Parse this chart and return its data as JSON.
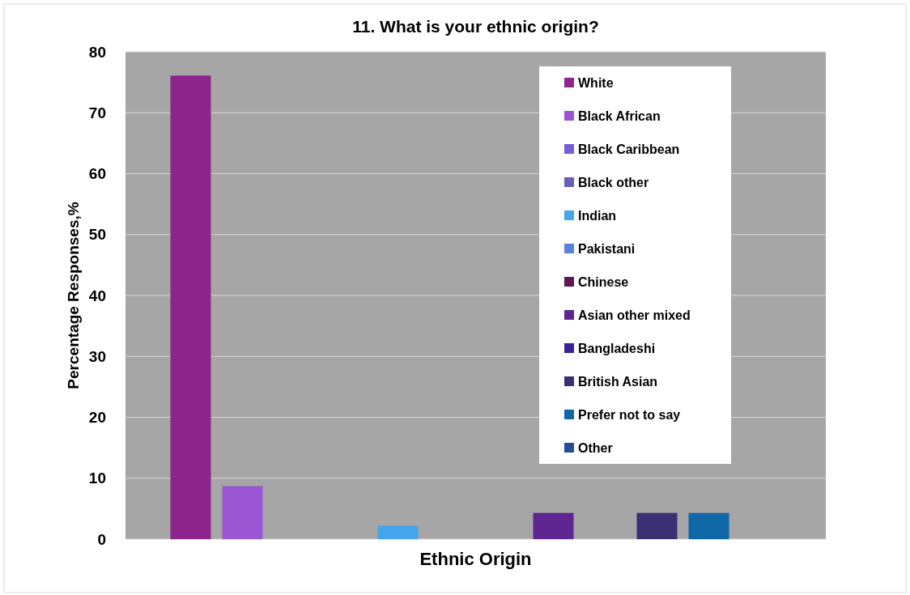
{
  "chart_data": {
    "type": "bar",
    "title": "11. What is your ethnic origin?",
    "xlabel": "Ethnic Origin",
    "ylabel": "Percentage Responses,%",
    "categories": [
      null
    ],
    "series": [
      {
        "name": "White",
        "color": "#8e258d",
        "values": [
          76.1
        ]
      },
      {
        "name": "Black African",
        "color": "#9b57d3",
        "values": [
          8.7
        ]
      },
      {
        "name": "Black Caribbean",
        "color": "#755dd9",
        "values": [
          0
        ]
      },
      {
        "name": "Black other",
        "color": "#665eb8",
        "values": [
          0
        ]
      },
      {
        "name": "Indian",
        "color": "#45a5ed",
        "values": [
          2.2
        ]
      },
      {
        "name": "Pakistani",
        "color": "#5982db",
        "values": [
          0
        ]
      },
      {
        "name": "Chinese",
        "color": "#5e1751",
        "values": [
          0
        ]
      },
      {
        "name": "Asian other mixed",
        "color": "#5f2590",
        "values": [
          4.3
        ]
      },
      {
        "name": "Bangladeshi",
        "color": "#3a2295",
        "values": [
          0
        ]
      },
      {
        "name": "British Asian",
        "color": "#3c3075",
        "values": [
          4.3
        ]
      },
      {
        "name": "Prefer not to say",
        "color": "#0f67a8",
        "values": [
          4.3
        ]
      },
      {
        "name": "Other",
        "color": "#254b99",
        "values": [
          0
        ]
      }
    ],
    "ylim": [
      0,
      80
    ],
    "yticks": [
      0,
      10,
      20,
      30,
      40,
      50,
      60,
      70,
      80
    ],
    "grid": "y",
    "legend": "top right"
  }
}
